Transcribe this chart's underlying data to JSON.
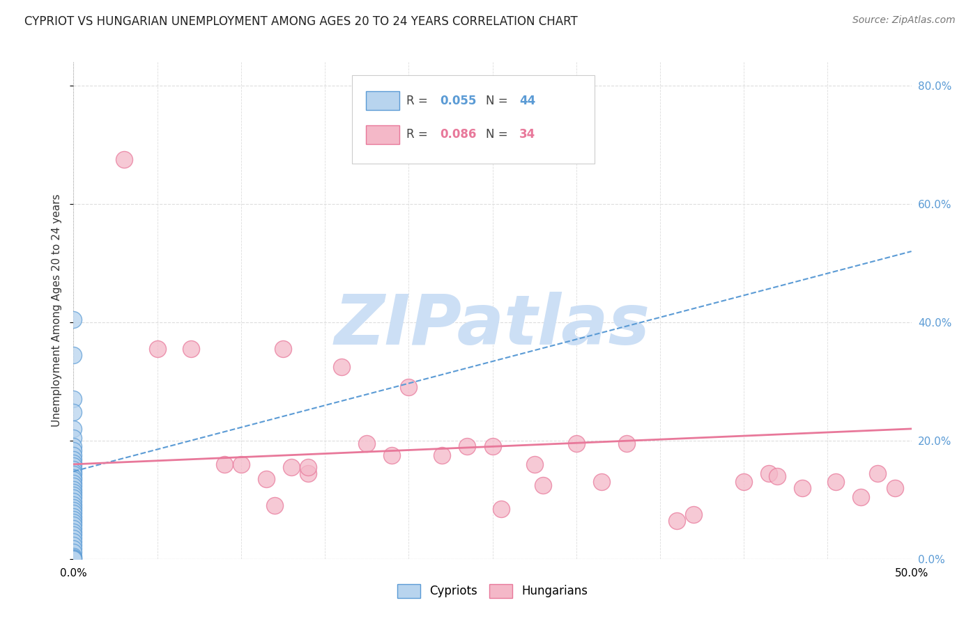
{
  "title": "CYPRIOT VS HUNGARIAN UNEMPLOYMENT AMONG AGES 20 TO 24 YEARS CORRELATION CHART",
  "source": "Source: ZipAtlas.com",
  "ylabel": "Unemployment Among Ages 20 to 24 years",
  "xlim": [
    0.0,
    0.5
  ],
  "ylim": [
    0.0,
    0.84
  ],
  "right_yticks": [
    0.0,
    0.2,
    0.4,
    0.6,
    0.8
  ],
  "right_yticklabels": [
    "0.0%",
    "20.0%",
    "40.0%",
    "60.0%",
    "80.0%"
  ],
  "xtick_positions": [
    0.0,
    0.5
  ],
  "xtick_labels": [
    "0.0%",
    "50.0%"
  ],
  "legend_blue_r": "0.055",
  "legend_blue_n": "44",
  "legend_pink_r": "0.086",
  "legend_pink_n": "34",
  "legend_label_blue": "Cypriots",
  "legend_label_pink": "Hungarians",
  "blue_face": "#b8d4ee",
  "blue_edge": "#5b9bd5",
  "pink_face": "#f4b8c8",
  "pink_edge": "#e8789a",
  "trend_blue_color": "#5b9bd5",
  "trend_pink_color": "#e8789a",
  "watermark": "ZIPatlas",
  "watermark_color": "#ccdff5",
  "blue_x": [
    0.0,
    0.0,
    0.0,
    0.0,
    0.0,
    0.0,
    0.0,
    0.0,
    0.0,
    0.0,
    0.0,
    0.0,
    0.0,
    0.0,
    0.0,
    0.0,
    0.0,
    0.0,
    0.0,
    0.0,
    0.0,
    0.0,
    0.0,
    0.0,
    0.0,
    0.0,
    0.0,
    0.0,
    0.0,
    0.0,
    0.0,
    0.0,
    0.0,
    0.0,
    0.0,
    0.0,
    0.0,
    0.0,
    0.0,
    0.0,
    0.0,
    0.0,
    0.0,
    0.0
  ],
  "blue_y": [
    0.405,
    0.345,
    0.27,
    0.248,
    0.22,
    0.205,
    0.19,
    0.183,
    0.175,
    0.168,
    0.162,
    0.157,
    0.152,
    0.147,
    0.143,
    0.138,
    0.134,
    0.128,
    0.123,
    0.118,
    0.113,
    0.108,
    0.103,
    0.098,
    0.092,
    0.087,
    0.082,
    0.077,
    0.072,
    0.067,
    0.062,
    0.057,
    0.052,
    0.046,
    0.041,
    0.035,
    0.029,
    0.023,
    0.017,
    0.011,
    0.005,
    0.002,
    0.001,
    0.0
  ],
  "pink_x": [
    0.03,
    0.05,
    0.07,
    0.09,
    0.1,
    0.115,
    0.125,
    0.13,
    0.14,
    0.16,
    0.175,
    0.19,
    0.2,
    0.22,
    0.235,
    0.255,
    0.275,
    0.3,
    0.315,
    0.33,
    0.37,
    0.4,
    0.415,
    0.435,
    0.455,
    0.47,
    0.48,
    0.49,
    0.12,
    0.14,
    0.25,
    0.28,
    0.36,
    0.42
  ],
  "pink_y": [
    0.675,
    0.355,
    0.355,
    0.16,
    0.16,
    0.135,
    0.355,
    0.155,
    0.145,
    0.325,
    0.195,
    0.175,
    0.29,
    0.175,
    0.19,
    0.085,
    0.16,
    0.195,
    0.13,
    0.195,
    0.075,
    0.13,
    0.145,
    0.12,
    0.13,
    0.105,
    0.145,
    0.12,
    0.09,
    0.155,
    0.19,
    0.125,
    0.065,
    0.14
  ],
  "blue_trend_x": [
    0.0,
    0.5
  ],
  "blue_trend_y": [
    0.148,
    0.52
  ],
  "pink_trend_x": [
    0.0,
    0.5
  ],
  "pink_trend_y": [
    0.16,
    0.22
  ],
  "grid_yticks": [
    0.0,
    0.2,
    0.4,
    0.6,
    0.8
  ],
  "grid_xticks_minor": [
    0.05,
    0.1,
    0.15,
    0.2,
    0.25,
    0.3,
    0.35,
    0.4,
    0.45
  ],
  "background_color": "#ffffff",
  "grid_color": "#dddddd"
}
